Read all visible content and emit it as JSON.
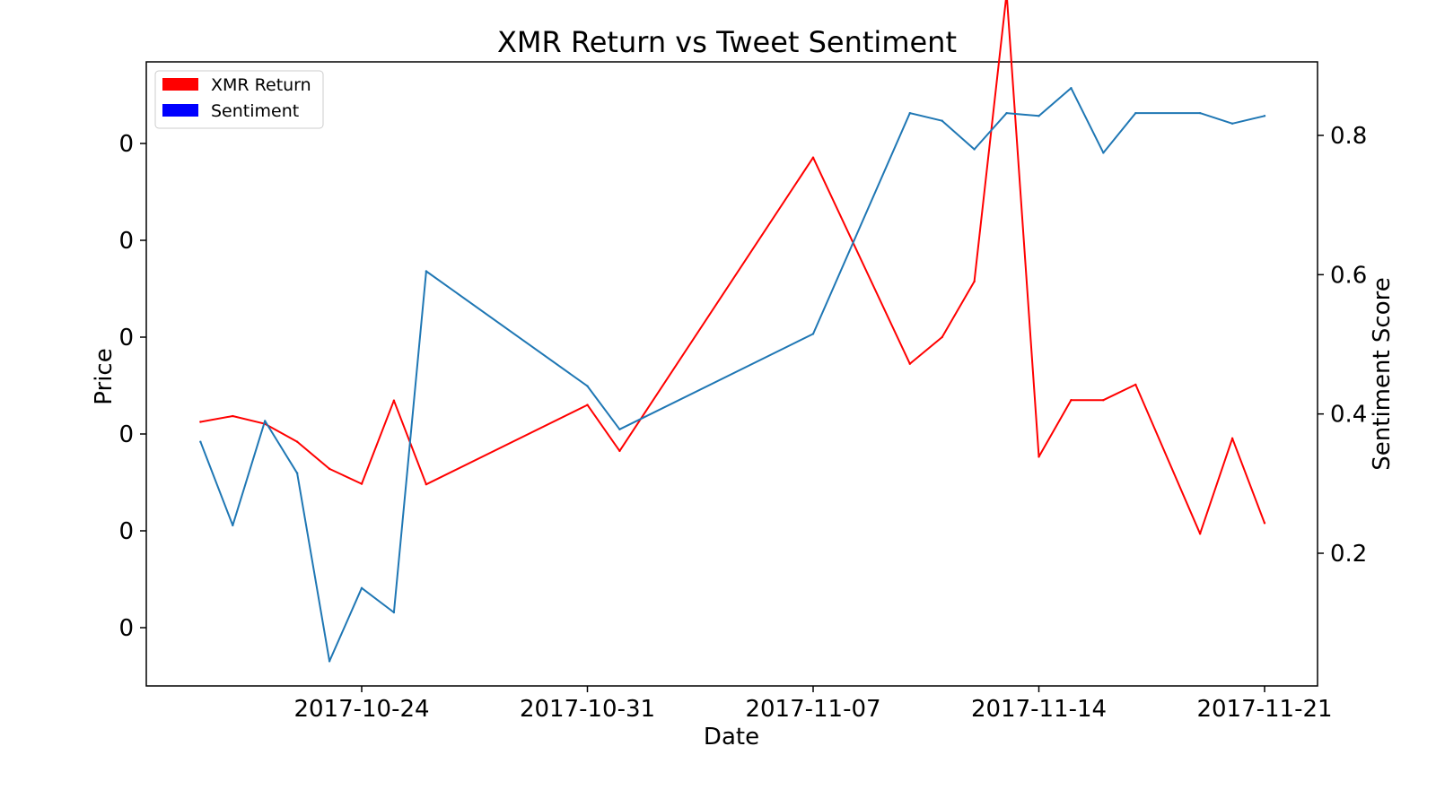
{
  "chart_data": {
    "type": "line",
    "title": "XMR Return vs Tweet Sentiment",
    "xlabel": "Date",
    "ylabel_left": "Price",
    "ylabel_right": "Sentiment Score",
    "x_ticks": [
      "2017-10-24",
      "2017-10-31",
      "2017-11-07",
      "2017-11-14",
      "2017-11-21"
    ],
    "x_range": [
      "2017-10-17",
      "2017-11-22"
    ],
    "y_left_ticks": [
      "0",
      "0",
      "0",
      "0",
      "0",
      "0"
    ],
    "y_right_ticks": [
      "0.2",
      "0.4",
      "0.6",
      "0.8"
    ],
    "y_right_range": [
      0.02,
      0.9
    ],
    "legend_position": "top-left",
    "legend": [
      {
        "label": "XMR Return",
        "color": "#ff0000"
      },
      {
        "label": "Sentiment",
        "color": "#0000ff"
      }
    ],
    "series": [
      {
        "name": "XMR Return",
        "color": "#ff0000",
        "axis": "left",
        "note_units": "relative level (left axis ticks show 0)",
        "x": [
          "2017-10-19",
          "2017-10-20",
          "2017-10-21",
          "2017-10-22",
          "2017-10-23",
          "2017-10-24",
          "2017-10-25",
          "2017-10-26",
          "2017-10-31",
          "2017-11-01",
          "2017-11-07",
          "2017-11-10",
          "2017-11-11",
          "2017-11-12",
          "2017-11-13",
          "2017-11-14",
          "2017-11-15",
          "2017-11-16",
          "2017-11-17",
          "2017-11-19",
          "2017-11-20",
          "2017-11-21"
        ],
        "y": [
          0.425,
          0.437,
          0.421,
          0.384,
          0.328,
          0.297,
          0.469,
          0.296,
          0.46,
          0.365,
          0.971,
          0.545,
          0.6,
          0.715,
          1.31,
          0.353,
          0.47,
          0.47,
          0.502,
          0.194,
          0.391,
          0.216
        ]
      },
      {
        "name": "Sentiment",
        "color": "#1f77b4",
        "axis": "right",
        "x": [
          "2017-10-19",
          "2017-10-20",
          "2017-10-21",
          "2017-10-22",
          "2017-10-23",
          "2017-10-24",
          "2017-10-25",
          "2017-10-26",
          "2017-10-31",
          "2017-11-01",
          "2017-11-07",
          "2017-11-10",
          "2017-11-11",
          "2017-11-12",
          "2017-11-13",
          "2017-11-14",
          "2017-11-15",
          "2017-11-16",
          "2017-11-17",
          "2017-11-19",
          "2017-11-20",
          "2017-11-21"
        ],
        "y": [
          0.36,
          0.24,
          0.39,
          0.315,
          0.045,
          0.15,
          0.115,
          0.605,
          0.44,
          0.378,
          0.515,
          0.832,
          0.821,
          0.78,
          0.832,
          0.828,
          0.868,
          0.775,
          0.832,
          0.832,
          0.817,
          0.828
        ]
      }
    ]
  }
}
